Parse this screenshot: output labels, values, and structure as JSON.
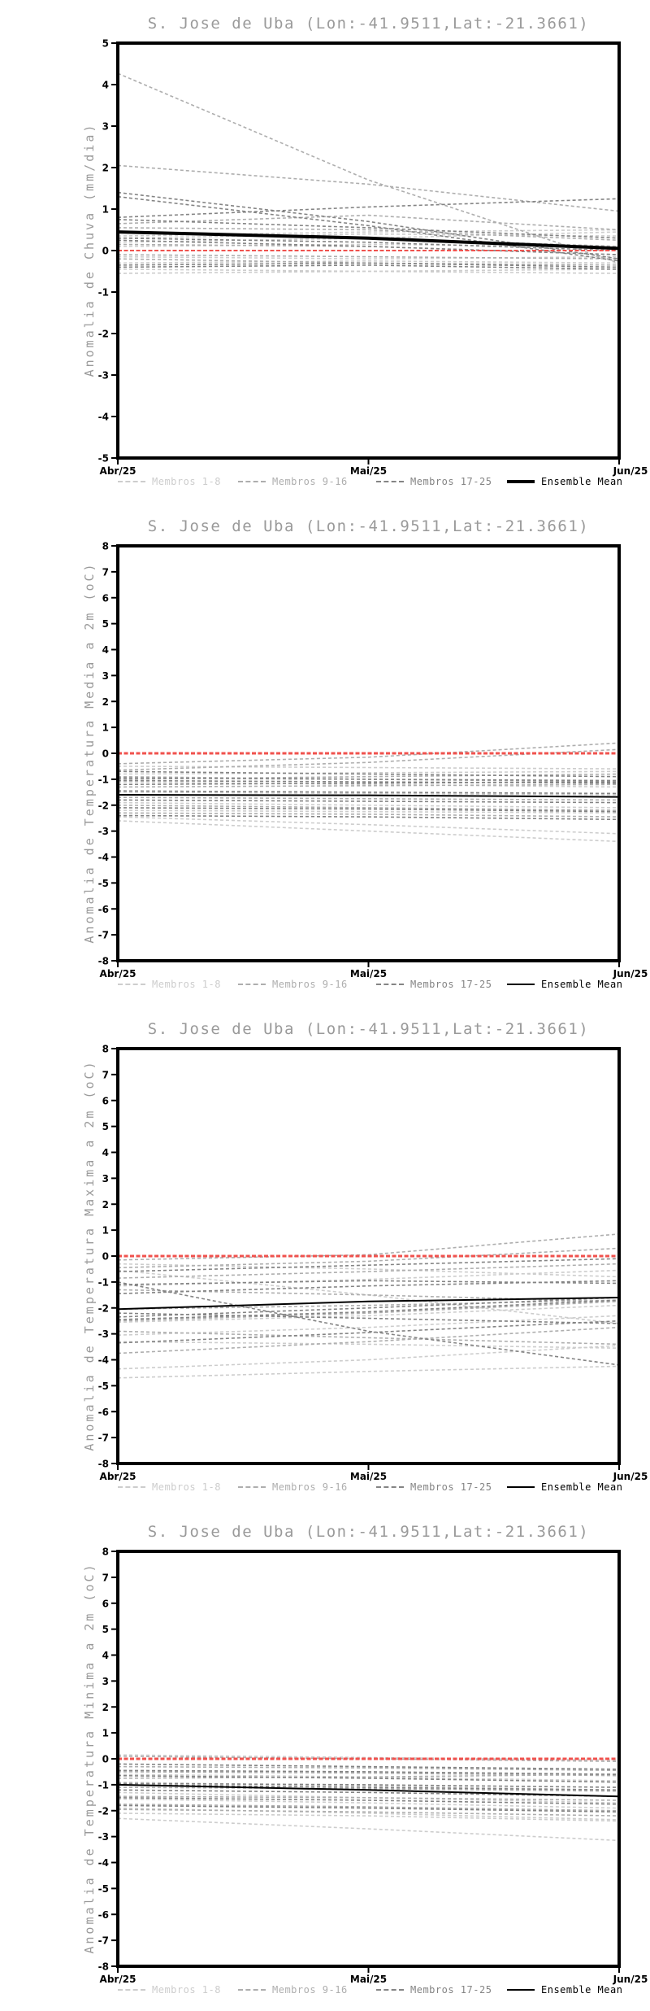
{
  "page": {
    "background": "#ffffff"
  },
  "chart_data": [
    {
      "type": "line",
      "title": "S. Jose de Uba (Lon:-41.9511,Lat:-21.3661)",
      "ylabel": "Anomalia de Chuva (mm/dia)",
      "ylim": [
        -5,
        5
      ],
      "ystep": 1,
      "x_categories": [
        "Abr/25",
        "Mai/25",
        "Jun/25"
      ],
      "zero_line": {
        "value": 0,
        "color": "#f0524e",
        "line_width": 2
      },
      "member_groups": [
        {
          "label": "Membros 1-8",
          "color": "#cdcdcd",
          "series": [
            [
              0.2,
              0.3,
              0.45
            ],
            [
              -0.55,
              -0.5,
              -0.55
            ],
            [
              0.1,
              0.15,
              0.1
            ],
            [
              -0.3,
              -0.25,
              -0.3
            ],
            [
              0.35,
              0.45,
              0.5
            ],
            [
              -0.45,
              -0.5,
              -0.45
            ],
            [
              0.3,
              0.4,
              0.35
            ],
            [
              -0.15,
              -0.2,
              -0.15
            ]
          ]
        },
        {
          "label": "Membros 9-16",
          "color": "#aeaeae",
          "series": [
            [
              4.27,
              1.7,
              -0.3
            ],
            [
              2.05,
              1.6,
              0.95
            ],
            [
              0.65,
              0.85,
              0.5
            ],
            [
              0.15,
              0.1,
              -0.1
            ],
            [
              -0.1,
              -0.15,
              -0.2
            ],
            [
              0.45,
              0.3,
              0.1
            ],
            [
              -0.2,
              -0.3,
              -0.35
            ],
            [
              0.55,
              0.5,
              0.25
            ]
          ]
        },
        {
          "label": "Membros 17-25",
          "color": "#848484",
          "series": [
            [
              1.4,
              0.7,
              -0.2
            ],
            [
              1.3,
              0.6,
              -0.25
            ],
            [
              0.8,
              1.05,
              1.25
            ],
            [
              0.75,
              0.55,
              0.3
            ],
            [
              0.3,
              0.2,
              0
            ],
            [
              0.25,
              0.1,
              -0.1
            ],
            [
              -0.35,
              -0.3,
              -0.4
            ],
            [
              -0.4,
              -0.35,
              -0.45
            ]
          ]
        }
      ],
      "ensemble_mean": {
        "label": "Ensemble Mean",
        "color": "#000000",
        "line_width": 4,
        "values": [
          0.45,
          0.3,
          0.05
        ]
      }
    },
    {
      "type": "line",
      "title": "S. Jose de Uba (Lon:-41.9511,Lat:-21.3661)",
      "ylabel": "Anomalia de Temperatura Media a 2m (oC)",
      "ylim": [
        -8,
        8
      ],
      "ystep": 1,
      "x_categories": [
        "Abr/25",
        "Mai/25",
        "Jun/25"
      ],
      "zero_line": {
        "value": 0,
        "color": "#f0524e",
        "line_width": 3
      },
      "member_groups": [
        {
          "label": "Membros 1-8",
          "color": "#cdcdcd",
          "series": [
            [
              -2.6,
              -3,
              -3.4
            ],
            [
              -2.45,
              -2.75,
              -3.1
            ],
            [
              -0.5,
              -0.55,
              -0.6
            ],
            [
              -1.1,
              -1.2,
              -1.3
            ],
            [
              -1.9,
              -2,
              -2.1
            ],
            [
              -2.2,
              -2.25,
              -2.3
            ],
            [
              -0.8,
              -0.75,
              -0.7
            ],
            [
              -1.5,
              -1.55,
              -1.6
            ]
          ]
        },
        {
          "label": "Membros 9-16",
          "color": "#aeaeae",
          "series": [
            [
              -0.4,
              -0.15,
              0.4
            ],
            [
              -0.65,
              -0.35,
              0.15
            ],
            [
              -1,
              -0.9,
              -0.8
            ],
            [
              -1.3,
              -1.25,
              -1.2
            ],
            [
              -1.7,
              -1.75,
              -1.8
            ],
            [
              -2,
              -2.1,
              -2.2
            ],
            [
              -0.9,
              -1,
              -1.1
            ],
            [
              -2.3,
              -2.35,
              -2.45
            ]
          ]
        },
        {
          "label": "Membros 17-25",
          "color": "#848484",
          "series": [
            [
              -0.7,
              -0.8,
              -0.9
            ],
            [
              -0.95,
              -1,
              -1.05
            ],
            [
              -1.2,
              -1.15,
              -1.1
            ],
            [
              -1.45,
              -1.5,
              -1.55
            ],
            [
              -1.8,
              -1.85,
              -1.9
            ],
            [
              -2.1,
              -2.15,
              -2.25
            ],
            [
              -2.4,
              -2.45,
              -2.55
            ],
            [
              -1.05,
              -1.1,
              -1.15
            ]
          ]
        }
      ],
      "ensemble_mean": {
        "label": "Ensemble Mean",
        "color": "#000000",
        "line_width": 2,
        "values": [
          -1.6,
          -1.62,
          -1.68
        ]
      }
    },
    {
      "type": "line",
      "title": "S. Jose de Uba (Lon:-41.9511,Lat:-21.3661)",
      "ylabel": "Anomalia de Temperatura Maxima a 2m (oC)",
      "ylim": [
        -8,
        8
      ],
      "ystep": 1,
      "x_categories": [
        "Abr/25",
        "Mai/25",
        "Jun/25"
      ],
      "zero_line": {
        "value": 0,
        "color": "#f0524e",
        "line_width": 3
      },
      "member_groups": [
        {
          "label": "Membros 1-8",
          "color": "#cdcdcd",
          "series": [
            [
              -4.7,
              -4.45,
              -4.25
            ],
            [
              -4.35,
              -4,
              -3.45
            ],
            [
              -3.3,
              -3.4,
              -3.55
            ],
            [
              -3.05,
              -2.75,
              -2.3
            ],
            [
              -0.55,
              -1.5,
              -2.6
            ],
            [
              -2.55,
              -2.3,
              -1.9
            ],
            [
              -0.3,
              -0.5,
              -0.8
            ],
            [
              -1.15,
              -0.9,
              -0.55
            ]
          ]
        },
        {
          "label": "Membros 9-16",
          "color": "#aeaeae",
          "series": [
            [
              -0.15,
              0.05,
              0.85
            ],
            [
              -0.45,
              -0.2,
              0.3
            ],
            [
              -3.75,
              -3.3,
              -2.75
            ],
            [
              -2.5,
              -2.2,
              -1.75
            ],
            [
              -1.3,
              -1.5,
              -1.75
            ],
            [
              -2.9,
              -3.15,
              -3.4
            ],
            [
              -0.85,
              -0.6,
              -0.3
            ],
            [
              -2.05,
              -1.9,
              -1.7
            ]
          ]
        },
        {
          "label": "Membros 17-25",
          "color": "#848484",
          "series": [
            [
              -1,
              -2.9,
              -4.2
            ],
            [
              -2.35,
              -2,
              -1.6
            ],
            [
              -2.45,
              -2.15,
              -1.7
            ],
            [
              -1.45,
              -1.15,
              -0.95
            ],
            [
              -1.1,
              -0.95,
              -1.05
            ],
            [
              -3.35,
              -2.95,
              -2.5
            ],
            [
              -0.6,
              -0.35,
              -0.1
            ],
            [
              -2.2,
              -2.4,
              -2.6
            ]
          ]
        }
      ],
      "ensemble_mean": {
        "label": "Ensemble Mean",
        "color": "#000000",
        "line_width": 2,
        "values": [
          -2.05,
          -1.75,
          -1.6
        ]
      }
    },
    {
      "type": "line",
      "title": "S. Jose de Uba (Lon:-41.9511,Lat:-21.3661)",
      "ylabel": "Anomalia de Temperatura Minima a 2m (oC)",
      "ylim": [
        -8,
        8
      ],
      "ystep": 1,
      "x_categories": [
        "Abr/25",
        "Mai/25",
        "Jun/25"
      ],
      "zero_line": {
        "value": 0,
        "color": "#f0524e",
        "line_width": 3
      },
      "member_groups": [
        {
          "label": "Membros 1-8",
          "color": "#cdcdcd",
          "series": [
            [
              0.15,
              0.05,
              -0.05
            ],
            [
              -1.3,
              -1.5,
              -1.7
            ],
            [
              -2.3,
              -2.7,
              -3.15
            ],
            [
              -1.9,
              -2.1,
              -2.35
            ],
            [
              -0.6,
              -0.7,
              -0.85
            ],
            [
              -1.55,
              -1.7,
              -1.9
            ],
            [
              -0.9,
              -1.05,
              -1.2
            ],
            [
              -2.1,
              -2.2,
              -2.4
            ]
          ]
        },
        {
          "label": "Membros 9-16",
          "color": "#aeaeae",
          "series": [
            [
              0.1,
              0,
              -0.1
            ],
            [
              -0.3,
              -0.35,
              -0.45
            ],
            [
              -0.75,
              -0.7,
              -0.6
            ],
            [
              -1.1,
              -1.15,
              -1.25
            ],
            [
              -1.45,
              -1.5,
              -1.6
            ],
            [
              -1.75,
              -1.85,
              -2
            ],
            [
              -0.5,
              -0.55,
              -0.65
            ],
            [
              -1.95,
              -2.05,
              -2.2
            ]
          ]
        },
        {
          "label": "Membros 17-25",
          "color": "#848484",
          "series": [
            [
              -0.2,
              -0.3,
              -0.4
            ],
            [
              -0.45,
              -0.5,
              -0.6
            ],
            [
              -0.65,
              -0.75,
              -0.9
            ],
            [
              -0.95,
              -1,
              -1.1
            ],
            [
              -1.2,
              -1.3,
              -1.45
            ],
            [
              -1.5,
              -1.6,
              -1.75
            ],
            [
              -1.8,
              -1.9,
              -2.05
            ],
            [
              -1,
              -1.1,
              -1.2
            ]
          ]
        }
      ],
      "ensemble_mean": {
        "label": "Ensemble Mean",
        "color": "#000000",
        "line_width": 2,
        "values": [
          -1,
          -1.2,
          -1.45
        ]
      }
    }
  ]
}
